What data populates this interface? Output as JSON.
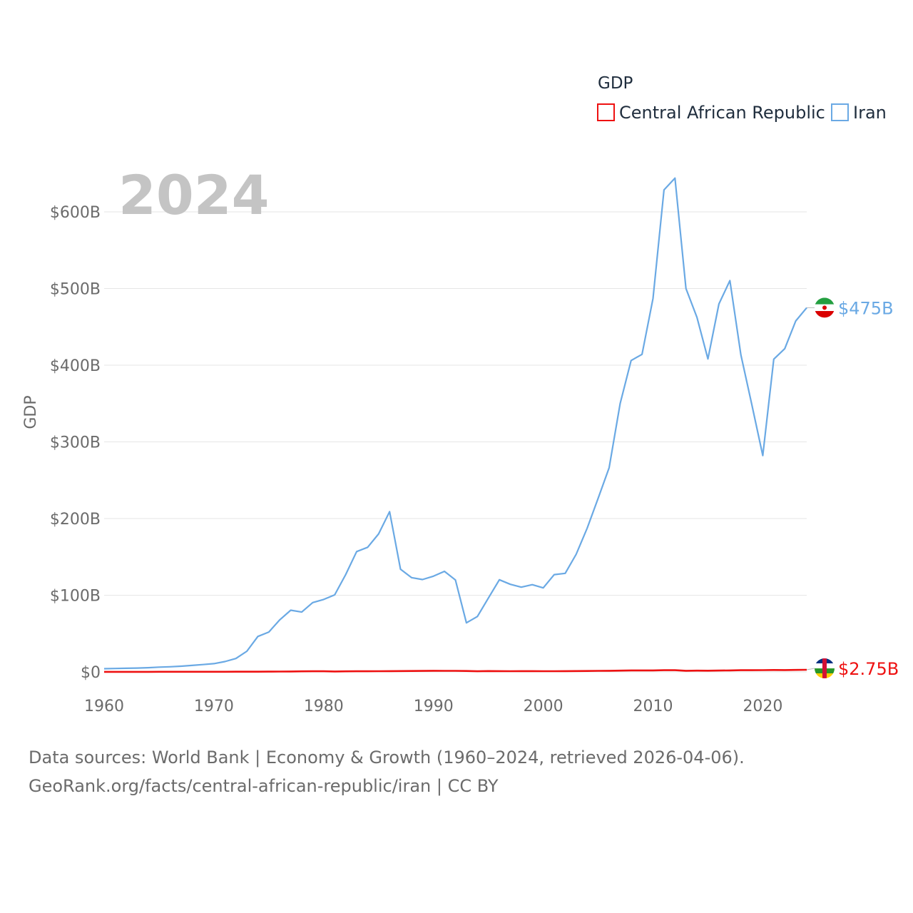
{
  "chart_data": {
    "type": "line",
    "year_label": "2024",
    "ylabel": "GDP",
    "ylim": [
      0,
      650
    ],
    "yticks": [
      {
        "value": 0,
        "label": "$0"
      },
      {
        "value": 100,
        "label": "$100B"
      },
      {
        "value": 200,
        "label": "$200B"
      },
      {
        "value": 300,
        "label": "$300B"
      },
      {
        "value": 400,
        "label": "$400B"
      },
      {
        "value": 500,
        "label": "$500B"
      },
      {
        "value": 600,
        "label": "$600B"
      }
    ],
    "xlim": [
      1960,
      2024
    ],
    "xticks": [
      {
        "value": 1960,
        "label": "1960"
      },
      {
        "value": 1970,
        "label": "1970"
      },
      {
        "value": 1980,
        "label": "1980"
      },
      {
        "value": 1990,
        "label": "1990"
      },
      {
        "value": 2000,
        "label": "2000"
      },
      {
        "value": 2010,
        "label": "2010"
      },
      {
        "value": 2020,
        "label": "2020"
      }
    ],
    "legend": {
      "title": "GDP",
      "position": "top-right"
    },
    "x": [
      1960,
      1961,
      1962,
      1963,
      1964,
      1965,
      1966,
      1967,
      1968,
      1969,
      1970,
      1971,
      1972,
      1973,
      1974,
      1975,
      1976,
      1977,
      1978,
      1979,
      1980,
      1981,
      1982,
      1983,
      1984,
      1985,
      1986,
      1987,
      1988,
      1989,
      1990,
      1991,
      1992,
      1993,
      1994,
      1995,
      1996,
      1997,
      1998,
      1999,
      2000,
      2001,
      2002,
      2003,
      2004,
      2005,
      2006,
      2007,
      2008,
      2009,
      2010,
      2011,
      2012,
      2013,
      2014,
      2015,
      2016,
      2017,
      2018,
      2019,
      2020,
      2021,
      2022,
      2023,
      2024
    ],
    "series": [
      {
        "name": "Central African Republic",
        "color": "#ee1111",
        "end_label": "$2.75B",
        "flag": "central-african-republic",
        "values": [
          0.1,
          0.1,
          0.12,
          0.12,
          0.13,
          0.14,
          0.15,
          0.16,
          0.17,
          0.19,
          0.2,
          0.22,
          0.25,
          0.28,
          0.32,
          0.38,
          0.45,
          0.55,
          0.7,
          0.8,
          0.8,
          0.6,
          0.7,
          0.8,
          0.8,
          0.9,
          1.0,
          1.1,
          1.2,
          1.3,
          1.5,
          1.4,
          1.4,
          1.2,
          0.8,
          1.1,
          1.0,
          0.9,
          1.0,
          1.0,
          0.9,
          0.9,
          1.0,
          1.1,
          1.2,
          1.4,
          1.5,
          1.7,
          2.0,
          2.0,
          2.0,
          2.2,
          2.2,
          1.5,
          1.7,
          1.6,
          1.8,
          2.0,
          2.2,
          2.2,
          2.3,
          2.5,
          2.4,
          2.6,
          2.75
        ]
      },
      {
        "name": "Iran",
        "color": "#6aa9e4",
        "end_label": "$475B",
        "flag": "iran",
        "values": [
          4.2,
          4.5,
          4.7,
          5.0,
          5.5,
          6.2,
          6.7,
          7.4,
          8.5,
          9.6,
          10.8,
          13.5,
          17.5,
          27,
          46.2,
          52,
          68,
          80.5,
          78,
          90.4,
          94.5,
          100.5,
          126.9,
          156.9,
          162.5,
          180,
          209,
          134,
          123,
          120.5,
          124.8,
          131.2,
          119.9,
          64,
          72.3,
          96.4,
          120.2,
          114.2,
          110.5,
          113.8,
          109.6,
          126.9,
          128.6,
          153.5,
          187.4,
          226.5,
          266.3,
          349.9,
          406.1,
          414.1,
          487.1,
          628.6,
          644,
          500,
          462.4,
          408.2,
          479.9,
          510.3,
          413.5,
          348.7,
          282.1,
          407.8,
          421.6,
          457.7,
          475
        ]
      }
    ]
  },
  "source": {
    "line1": "Data sources: World Bank | Economy & Growth (1960–2024, retrieved 2026-04-06).",
    "line2": "GeoRank.org/facts/central-african-republic/iran | CC BY"
  }
}
